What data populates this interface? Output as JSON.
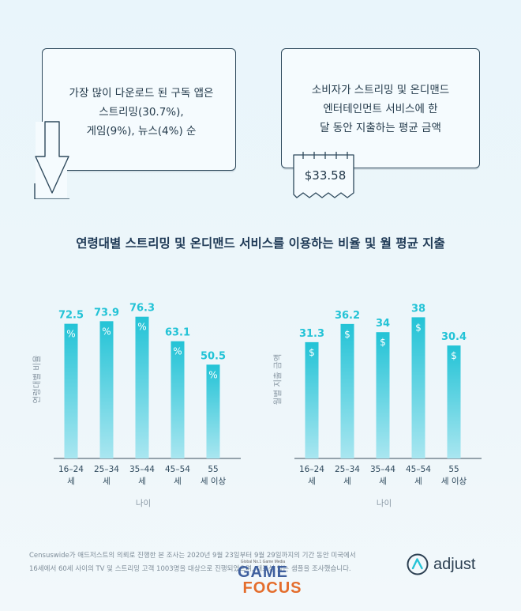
{
  "cards": {
    "left_text": "가장 많이 다운로드 된 구독 앱은\n스트리밍(30.7%),\n게임(9%), 뉴스(4%) 순",
    "right_text": "소비자가 스트리밍 및 온디맨드\n엔터테인먼트 서비스에 한\n달 동안 지출하는 평균 금액",
    "receipt_amount": "$33.58"
  },
  "title": "연령대별 스트리밍 및 온디맨드 서비스를 이용하는 비율 및 월 평균 지출",
  "chart_data": [
    {
      "type": "bar",
      "categories": [
        [
          "16–24",
          "세"
        ],
        [
          "25–34",
          "세"
        ],
        [
          "35–44",
          "세"
        ],
        [
          "45–54",
          "세"
        ],
        [
          "55",
          "세 이상"
        ]
      ],
      "values": [
        72.5,
        73.9,
        76.3,
        63.1,
        50.5
      ],
      "value_labels": [
        "72.5",
        "73.9",
        "76.3",
        "63.1",
        "50.5"
      ],
      "bar_symbol": "%",
      "xlabel": "나이",
      "ylabel": "연령대별 비율",
      "ylim": [
        0,
        100
      ],
      "color": "#23c3d6"
    },
    {
      "type": "bar",
      "categories": [
        [
          "16–24",
          "세"
        ],
        [
          "25–34",
          "세"
        ],
        [
          "35–44",
          "세"
        ],
        [
          "45–54",
          "세"
        ],
        [
          "55",
          "세 이상"
        ]
      ],
      "values": [
        31.3,
        36.2,
        34,
        38,
        30.4
      ],
      "value_labels": [
        "31.3",
        "36.2",
        "34",
        "38",
        "30.4"
      ],
      "bar_symbol": "$",
      "xlabel": "나이",
      "ylabel": "월별 지출 금액",
      "ylim": [
        0,
        50
      ],
      "color": "#23c3d6"
    }
  ],
  "footnote": "Censuswide가 애드저스트의 의뢰로 진행한 본 조사는 2020년 9월 23일부터 9월 29일까지의 기간 동안 미국에서\n16세에서 60세 사이의 TV 및 스트리밍 고객 1003명을 대상으로 진행되었으며, 대표성 있는 샘플을 조사했습니다.",
  "brand": "adjust",
  "watermark": {
    "tagline": "Global No.1 Game Media",
    "word1": "GAME",
    "word2": "FOCUS"
  }
}
